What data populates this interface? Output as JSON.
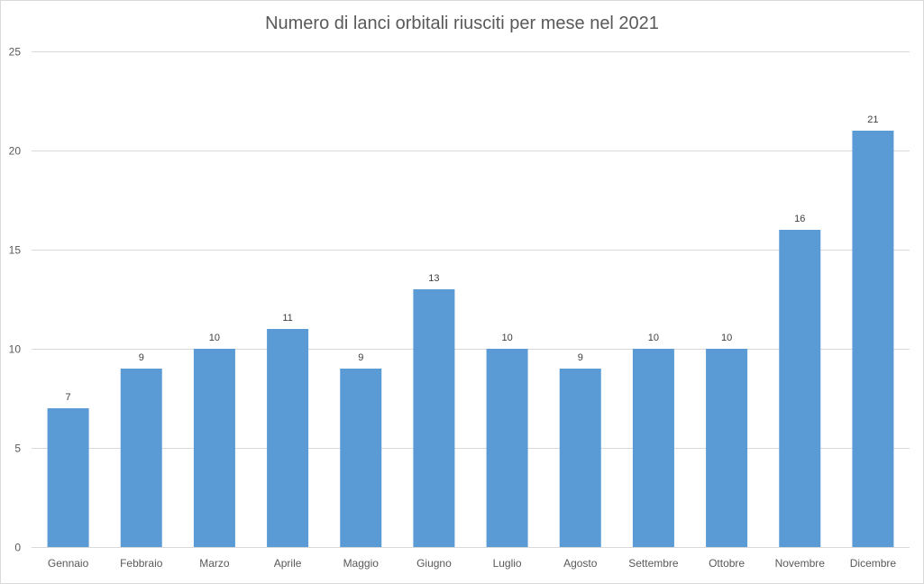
{
  "chart_data": {
    "type": "bar",
    "title": "Numero di lanci orbitali riusciti per mese nel 2021",
    "xlabel": "",
    "ylabel": "",
    "categories": [
      "Gennaio",
      "Febbraio",
      "Marzo",
      "Aprile",
      "Maggio",
      "Giugno",
      "Luglio",
      "Agosto",
      "Settembre",
      "Ottobre",
      "Novembre",
      "Dicembre"
    ],
    "values": [
      7,
      9,
      10,
      11,
      9,
      13,
      10,
      9,
      10,
      10,
      16,
      21
    ],
    "ylim": [
      0,
      25
    ],
    "yticks": [
      0,
      5,
      10,
      15,
      20,
      25
    ],
    "grid": true,
    "legend": "none",
    "bar_color": "#5b9bd5",
    "data_labels": true
  }
}
